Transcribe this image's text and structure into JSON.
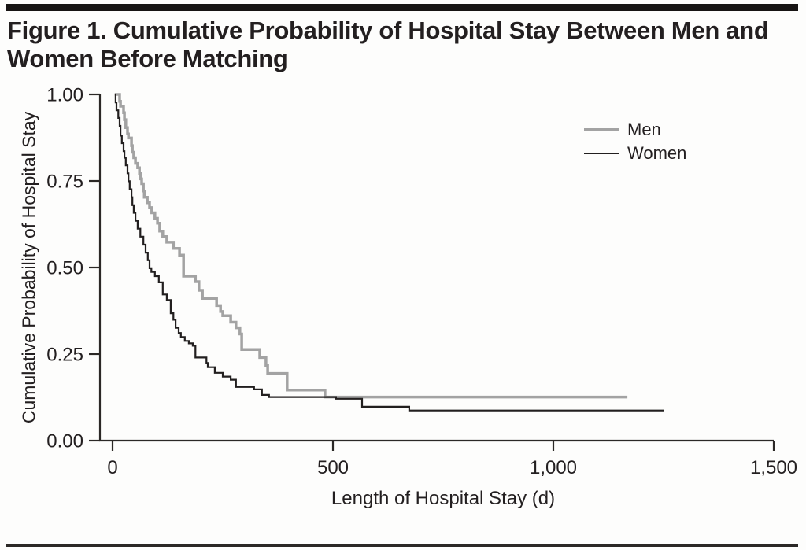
{
  "figure": {
    "title": "Figure 1. Cumulative Probability of Hospital Stay Between Men and Women Before Matching"
  },
  "chart_data": {
    "type": "line",
    "subtype": "step-survival-curve",
    "title": "Figure 1. Cumulative Probability of Hospital Stay Between Men and Women Before Matching",
    "xlabel": "Length of Hospital Stay (d)",
    "ylabel": "Cumulative Probability of Hospital Stay",
    "xlim": [
      0,
      1500
    ],
    "ylim": [
      0.0,
      1.0
    ],
    "x_ticks": [
      0,
      500,
      1000,
      1500
    ],
    "x_tick_labels": [
      "0",
      "500",
      "1,000",
      "1,500"
    ],
    "y_ticks": [
      0.0,
      0.25,
      0.5,
      0.75,
      1.0
    ],
    "y_tick_labels": [
      "0.00",
      "0.25",
      "0.50",
      "0.75",
      "1.00"
    ],
    "grid": false,
    "legend_position": "upper right",
    "axis_color": "#2b2826",
    "series": [
      {
        "name": "Men",
        "color": "#a3a3a3",
        "line_width": 3.5,
        "points": [
          [
            5,
            1.0
          ],
          [
            16,
            0.98
          ],
          [
            18,
            0.966
          ],
          [
            25,
            0.947
          ],
          [
            27,
            0.927
          ],
          [
            30,
            0.904
          ],
          [
            34,
            0.886
          ],
          [
            36,
            0.874
          ],
          [
            43,
            0.852
          ],
          [
            45,
            0.833
          ],
          [
            48,
            0.817
          ],
          [
            52,
            0.801
          ],
          [
            57,
            0.788
          ],
          [
            61,
            0.772
          ],
          [
            63,
            0.756
          ],
          [
            66,
            0.742
          ],
          [
            70,
            0.721
          ],
          [
            72,
            0.703
          ],
          [
            79,
            0.687
          ],
          [
            84,
            0.673
          ],
          [
            89,
            0.658
          ],
          [
            96,
            0.642
          ],
          [
            102,
            0.628
          ],
          [
            107,
            0.605
          ],
          [
            114,
            0.589
          ],
          [
            123,
            0.573
          ],
          [
            138,
            0.555
          ],
          [
            152,
            0.536
          ],
          [
            161,
            0.475
          ],
          [
            188,
            0.459
          ],
          [
            196,
            0.434
          ],
          [
            204,
            0.411
          ],
          [
            236,
            0.39
          ],
          [
            245,
            0.373
          ],
          [
            250,
            0.361
          ],
          [
            268,
            0.342
          ],
          [
            280,
            0.326
          ],
          [
            289,
            0.308
          ],
          [
            293,
            0.263
          ],
          [
            334,
            0.24
          ],
          [
            348,
            0.217
          ],
          [
            352,
            0.194
          ],
          [
            396,
            0.146
          ],
          [
            482,
            0.126
          ],
          [
            1168,
            0.126
          ]
        ]
      },
      {
        "name": "Women",
        "color": "#221f1f",
        "line_width": 2.2,
        "points": [
          [
            5,
            1.0
          ],
          [
            7,
            0.977
          ],
          [
            9,
            0.954
          ],
          [
            13,
            0.932
          ],
          [
            16,
            0.909
          ],
          [
            18,
            0.881
          ],
          [
            21,
            0.859
          ],
          [
            25,
            0.836
          ],
          [
            27,
            0.817
          ],
          [
            30,
            0.795
          ],
          [
            34,
            0.772
          ],
          [
            36,
            0.749
          ],
          [
            39,
            0.726
          ],
          [
            43,
            0.703
          ],
          [
            45,
            0.68
          ],
          [
            48,
            0.658
          ],
          [
            52,
            0.635
          ],
          [
            57,
            0.612
          ],
          [
            63,
            0.589
          ],
          [
            70,
            0.566
          ],
          [
            75,
            0.543
          ],
          [
            80,
            0.521
          ],
          [
            84,
            0.498
          ],
          [
            88,
            0.487
          ],
          [
            96,
            0.475
          ],
          [
            105,
            0.457
          ],
          [
            114,
            0.422
          ],
          [
            123,
            0.406
          ],
          [
            132,
            0.368
          ],
          [
            138,
            0.349
          ],
          [
            143,
            0.326
          ],
          [
            150,
            0.311
          ],
          [
            155,
            0.299
          ],
          [
            164,
            0.288
          ],
          [
            173,
            0.281
          ],
          [
            182,
            0.274
          ],
          [
            188,
            0.24
          ],
          [
            213,
            0.224
          ],
          [
            216,
            0.212
          ],
          [
            232,
            0.196
          ],
          [
            250,
            0.185
          ],
          [
            268,
            0.176
          ],
          [
            280,
            0.155
          ],
          [
            321,
            0.148
          ],
          [
            339,
            0.132
          ],
          [
            355,
            0.126
          ],
          [
            507,
            0.121
          ],
          [
            566,
            0.098
          ],
          [
            673,
            0.087
          ],
          [
            1250,
            0.087
          ]
        ]
      }
    ]
  }
}
